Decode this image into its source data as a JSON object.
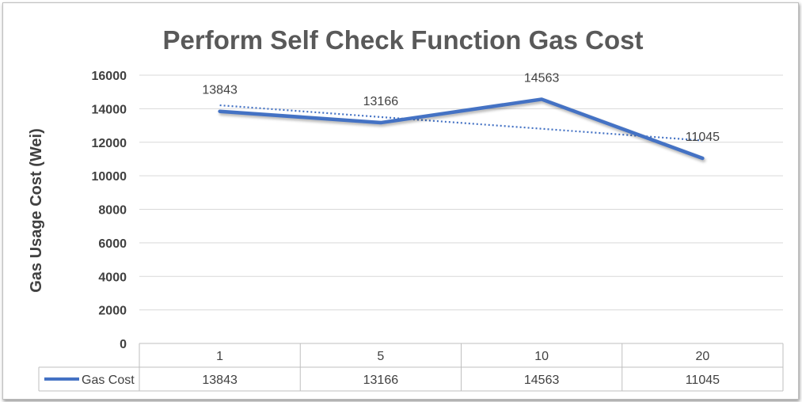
{
  "chart_data": {
    "type": "line",
    "title": "Perform Self Check Function Gas Cost",
    "ylabel": "Gas Usage Cost (Wei)",
    "xlabel": "",
    "categories": [
      "1",
      "5",
      "10",
      "20"
    ],
    "ylim": [
      0,
      16000
    ],
    "yticks": [
      0,
      2000,
      4000,
      6000,
      8000,
      10000,
      12000,
      14000,
      16000
    ],
    "grid": true,
    "data_table": true,
    "trendline": "linear, dotted",
    "series": [
      {
        "name": "Gas Cost",
        "values": [
          13843,
          13166,
          14563,
          11045
        ],
        "data_labels": [
          "13843",
          "13166",
          "14563",
          "11045"
        ],
        "color": "#4472c4"
      }
    ]
  }
}
